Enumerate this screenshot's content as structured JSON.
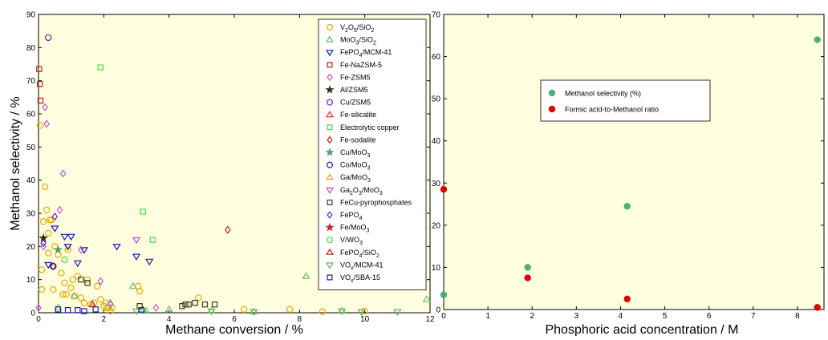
{
  "chart_data": [
    {
      "type": "scatter",
      "xlabel": "Methane conversion / %",
      "ylabel": "Methanol selectivity / %",
      "xlim": [
        0,
        12
      ],
      "ylim": [
        0,
        90
      ],
      "xticks": [
        "0",
        "2",
        "4",
        "6",
        "8",
        "10",
        "12"
      ],
      "yticks": [
        "0",
        "10",
        "20",
        "30",
        "40",
        "50",
        "60",
        "70",
        "80",
        "90"
      ],
      "background": "#ffffe0",
      "legend_position": "top-right",
      "series": [
        {
          "name": "V2O5/SiO2",
          "legend": [
            "V",
            "2",
            "O",
            "5",
            "/SiO",
            "2"
          ],
          "marker": "circle",
          "color": "#e8a800",
          "x": [
            0.05,
            0.1,
            0.1,
            0.15,
            0.2,
            0.25,
            0.3,
            0.3,
            0.35,
            0.4,
            0.45,
            0.5,
            0.6,
            0.7,
            0.75,
            0.8,
            0.85,
            0.9,
            1.0,
            1.05,
            1.1,
            1.2,
            1.3,
            1.4,
            1.5,
            1.6,
            1.7,
            1.8,
            1.9,
            2.0,
            2.05,
            2.1,
            2.15,
            2.2,
            2.25,
            3.05,
            3.1,
            4.9,
            6.3,
            7.7,
            8.7,
            10.0
          ],
          "y": [
            56.5,
            13,
            7,
            27.5,
            38,
            31,
            24,
            18,
            28,
            28,
            7,
            20,
            17.5,
            12,
            5.5,
            9,
            5.5,
            19,
            7.5,
            10,
            5,
            11,
            4.5,
            3,
            10,
            2.5,
            3,
            8,
            4,
            2,
            3,
            1.5,
            1.5,
            0.5,
            1.5,
            8,
            6.5,
            4.5,
            1,
            1,
            0.3,
            0.5
          ]
        },
        {
          "name": "MoO3/SiO2",
          "legend": [
            "MoO",
            "3",
            "/SiO",
            "2"
          ],
          "marker": "triangle-up",
          "color": "#6abe6a",
          "x": [
            0.6,
            1.1,
            2.2,
            2.9,
            3.2,
            3.3,
            4.0,
            5.3,
            6.6,
            8.2,
            9.3,
            11.9
          ],
          "y": [
            1.5,
            5,
            3,
            8,
            1,
            0.5,
            1,
            0.5,
            0.3,
            11,
            0.5,
            4
          ]
        },
        {
          "name": "FePO4/MCM-41",
          "legend": [
            "FePO",
            "4",
            "/MCM-41"
          ],
          "marker": "triangle-down",
          "color": "#1a1ab8",
          "x": [
            0.3,
            0.5,
            0.8,
            0.9,
            1.0,
            1.2,
            1.4,
            2.4,
            3.0,
            3.4
          ],
          "y": [
            14.5,
            25.5,
            23,
            20,
            23,
            15,
            19,
            20,
            17,
            15.5
          ]
        },
        {
          "name": "Fe-NaZSM-5",
          "legend": [
            "Fe-NaZSM-5"
          ],
          "marker": "square",
          "color": "#cc1a1a",
          "x": [
            0.02,
            0.04,
            0.06
          ],
          "y": [
            73.5,
            69,
            64
          ]
        },
        {
          "name": "Fe-ZSM5",
          "legend": [
            "Fe-ZSM5"
          ],
          "marker": "diamond",
          "color": "#c855c8",
          "x": [
            0.0,
            0.15,
            0.2,
            0.25,
            0.65,
            0.75,
            1.3,
            1.9,
            2.2,
            3.6
          ],
          "y": [
            1.5,
            20,
            62,
            57,
            31,
            42,
            19,
            9.5,
            2.5,
            1.5
          ]
        },
        {
          "name": "Al/ZSM5",
          "legend": [
            "Al/ZSM5"
          ],
          "marker": "star",
          "color": "#2e2e1a",
          "x": [
            0.15
          ],
          "y": [
            22.5
          ]
        },
        {
          "name": "Cu/ZSM5",
          "legend": [
            "Cu/ZSM5"
          ],
          "marker": "circle",
          "color": "#7a1aa0",
          "x": [
            0.3
          ],
          "y": [
            83
          ]
        },
        {
          "name": "Fe-silicalite",
          "legend": [
            "Fe-silicalite"
          ],
          "marker": "triangle-up",
          "color": "#e03030",
          "x": [
            1.65
          ],
          "y": [
            2.5
          ]
        },
        {
          "name": "Electrolytic copper",
          "legend": [
            "Electrolytic copper"
          ],
          "marker": "square",
          "color": "#44dd44",
          "x": [
            1.9,
            3.2,
            3.5
          ],
          "y": [
            74,
            30.5,
            22
          ]
        },
        {
          "name": "Fe-sodalite",
          "legend": [
            "Fe-sodalite"
          ],
          "marker": "diamond",
          "color": "#cc1a1a",
          "x": [
            0.45,
            5.8
          ],
          "y": [
            14,
            25
          ]
        },
        {
          "name": "Cu/MoO3",
          "legend": [
            "Cu/MoO",
            "3"
          ],
          "marker": "star",
          "color": "#5aa070",
          "x": [
            0.6
          ],
          "y": [
            19
          ]
        },
        {
          "name": "Co/MoO3",
          "legend": [
            "Co/MoO",
            "3"
          ],
          "marker": "circle",
          "color": "#1a1aa0",
          "x": [
            0.45
          ],
          "y": [
            14
          ]
        },
        {
          "name": "Ga/MoO3",
          "legend": [
            "Ga/MoO",
            "3"
          ],
          "marker": "triangle-up",
          "color": "#e8a800",
          "x": [],
          "y": []
        },
        {
          "name": "Ga2O3/MoO3",
          "legend": [
            "Ga",
            "2",
            "O",
            "3",
            "/MoO",
            "3"
          ],
          "marker": "triangle-down",
          "color": "#c84ac8",
          "x": [
            3.0
          ],
          "y": [
            22
          ]
        },
        {
          "name": "FeCu-pyrophosphates",
          "legend": [
            "FeCu-pyrophosphates"
          ],
          "marker": "square",
          "color": "#3a3a22",
          "x": [
            1.3,
            1.5,
            3.1,
            4.4,
            4.5,
            4.6,
            4.8,
            5.1,
            5.4
          ],
          "y": [
            10,
            9,
            2,
            2,
            2.5,
            2.5,
            3,
            2.5,
            2.5
          ]
        },
        {
          "name": "FePO4",
          "legend": [
            "FePO",
            "4"
          ],
          "marker": "diamond",
          "color": "#6a2ac0",
          "x": [
            0.15,
            0.5
          ],
          "y": [
            21,
            29
          ]
        },
        {
          "name": "Fe/MoO3",
          "legend": [
            "Fe/MoO",
            "3"
          ],
          "marker": "star",
          "color": "#cc2222",
          "x": [],
          "y": []
        },
        {
          "name": "V/WO3",
          "legend": [
            "V/WO",
            "3"
          ],
          "marker": "circle",
          "color": "#44dd44",
          "x": [
            0.8
          ],
          "y": [
            16
          ]
        },
        {
          "name": "FePO4/SiO2",
          "legend": [
            "FePO",
            "4",
            "/SiO",
            "2"
          ],
          "marker": "triangle-up",
          "color": "#cc1a1a",
          "x": [],
          "y": []
        },
        {
          "name": "VOx/MCM-41",
          "legend": [
            "VO",
            "x",
            "/MCM-41"
          ],
          "marker": "triangle-down",
          "color": "#6aae6a",
          "x": [
            3.0,
            5.3,
            6.6,
            9.3,
            9.9,
            11.0
          ],
          "y": [
            0.5,
            0.5,
            0.3,
            0.5,
            0.3,
            0.3
          ]
        },
        {
          "name": "VOx/SBA-15",
          "legend": [
            "VO",
            "x",
            "/SBA-15"
          ],
          "marker": "square",
          "color": "#1a1ab8",
          "x": [
            0.6,
            0.9,
            1.2,
            1.4,
            1.75,
            3.15
          ],
          "y": [
            1,
            0.8,
            0.8,
            0.5,
            1,
            0.8
          ]
        }
      ]
    },
    {
      "type": "scatter",
      "xlabel": "Phosphoric acid concentration / M",
      "ylabel": "",
      "xlim": [
        0,
        8.6
      ],
      "ylim": [
        0,
        70
      ],
      "xticks": [
        "0",
        "1",
        "2",
        "3",
        "4",
        "5",
        "6",
        "7",
        "8"
      ],
      "yticks": [
        "0",
        "10",
        "20",
        "30",
        "40",
        "50",
        "60",
        "70"
      ],
      "background": "#ffffe0",
      "legend_position": "upper-center",
      "series": [
        {
          "name": "Methanol selectivity (%)",
          "marker": "filled-circle",
          "color": "#4caf78",
          "x": [
            0,
            1.9,
            4.15,
            8.45
          ],
          "y": [
            3.5,
            10,
            24.5,
            64
          ]
        },
        {
          "name": "Formic acid-to-Methanol ratio",
          "marker": "filled-circle",
          "color": "#e00000",
          "x": [
            0,
            1.9,
            4.15,
            8.45
          ],
          "y": [
            28.5,
            7.5,
            2.5,
            0.5
          ]
        }
      ]
    }
  ]
}
